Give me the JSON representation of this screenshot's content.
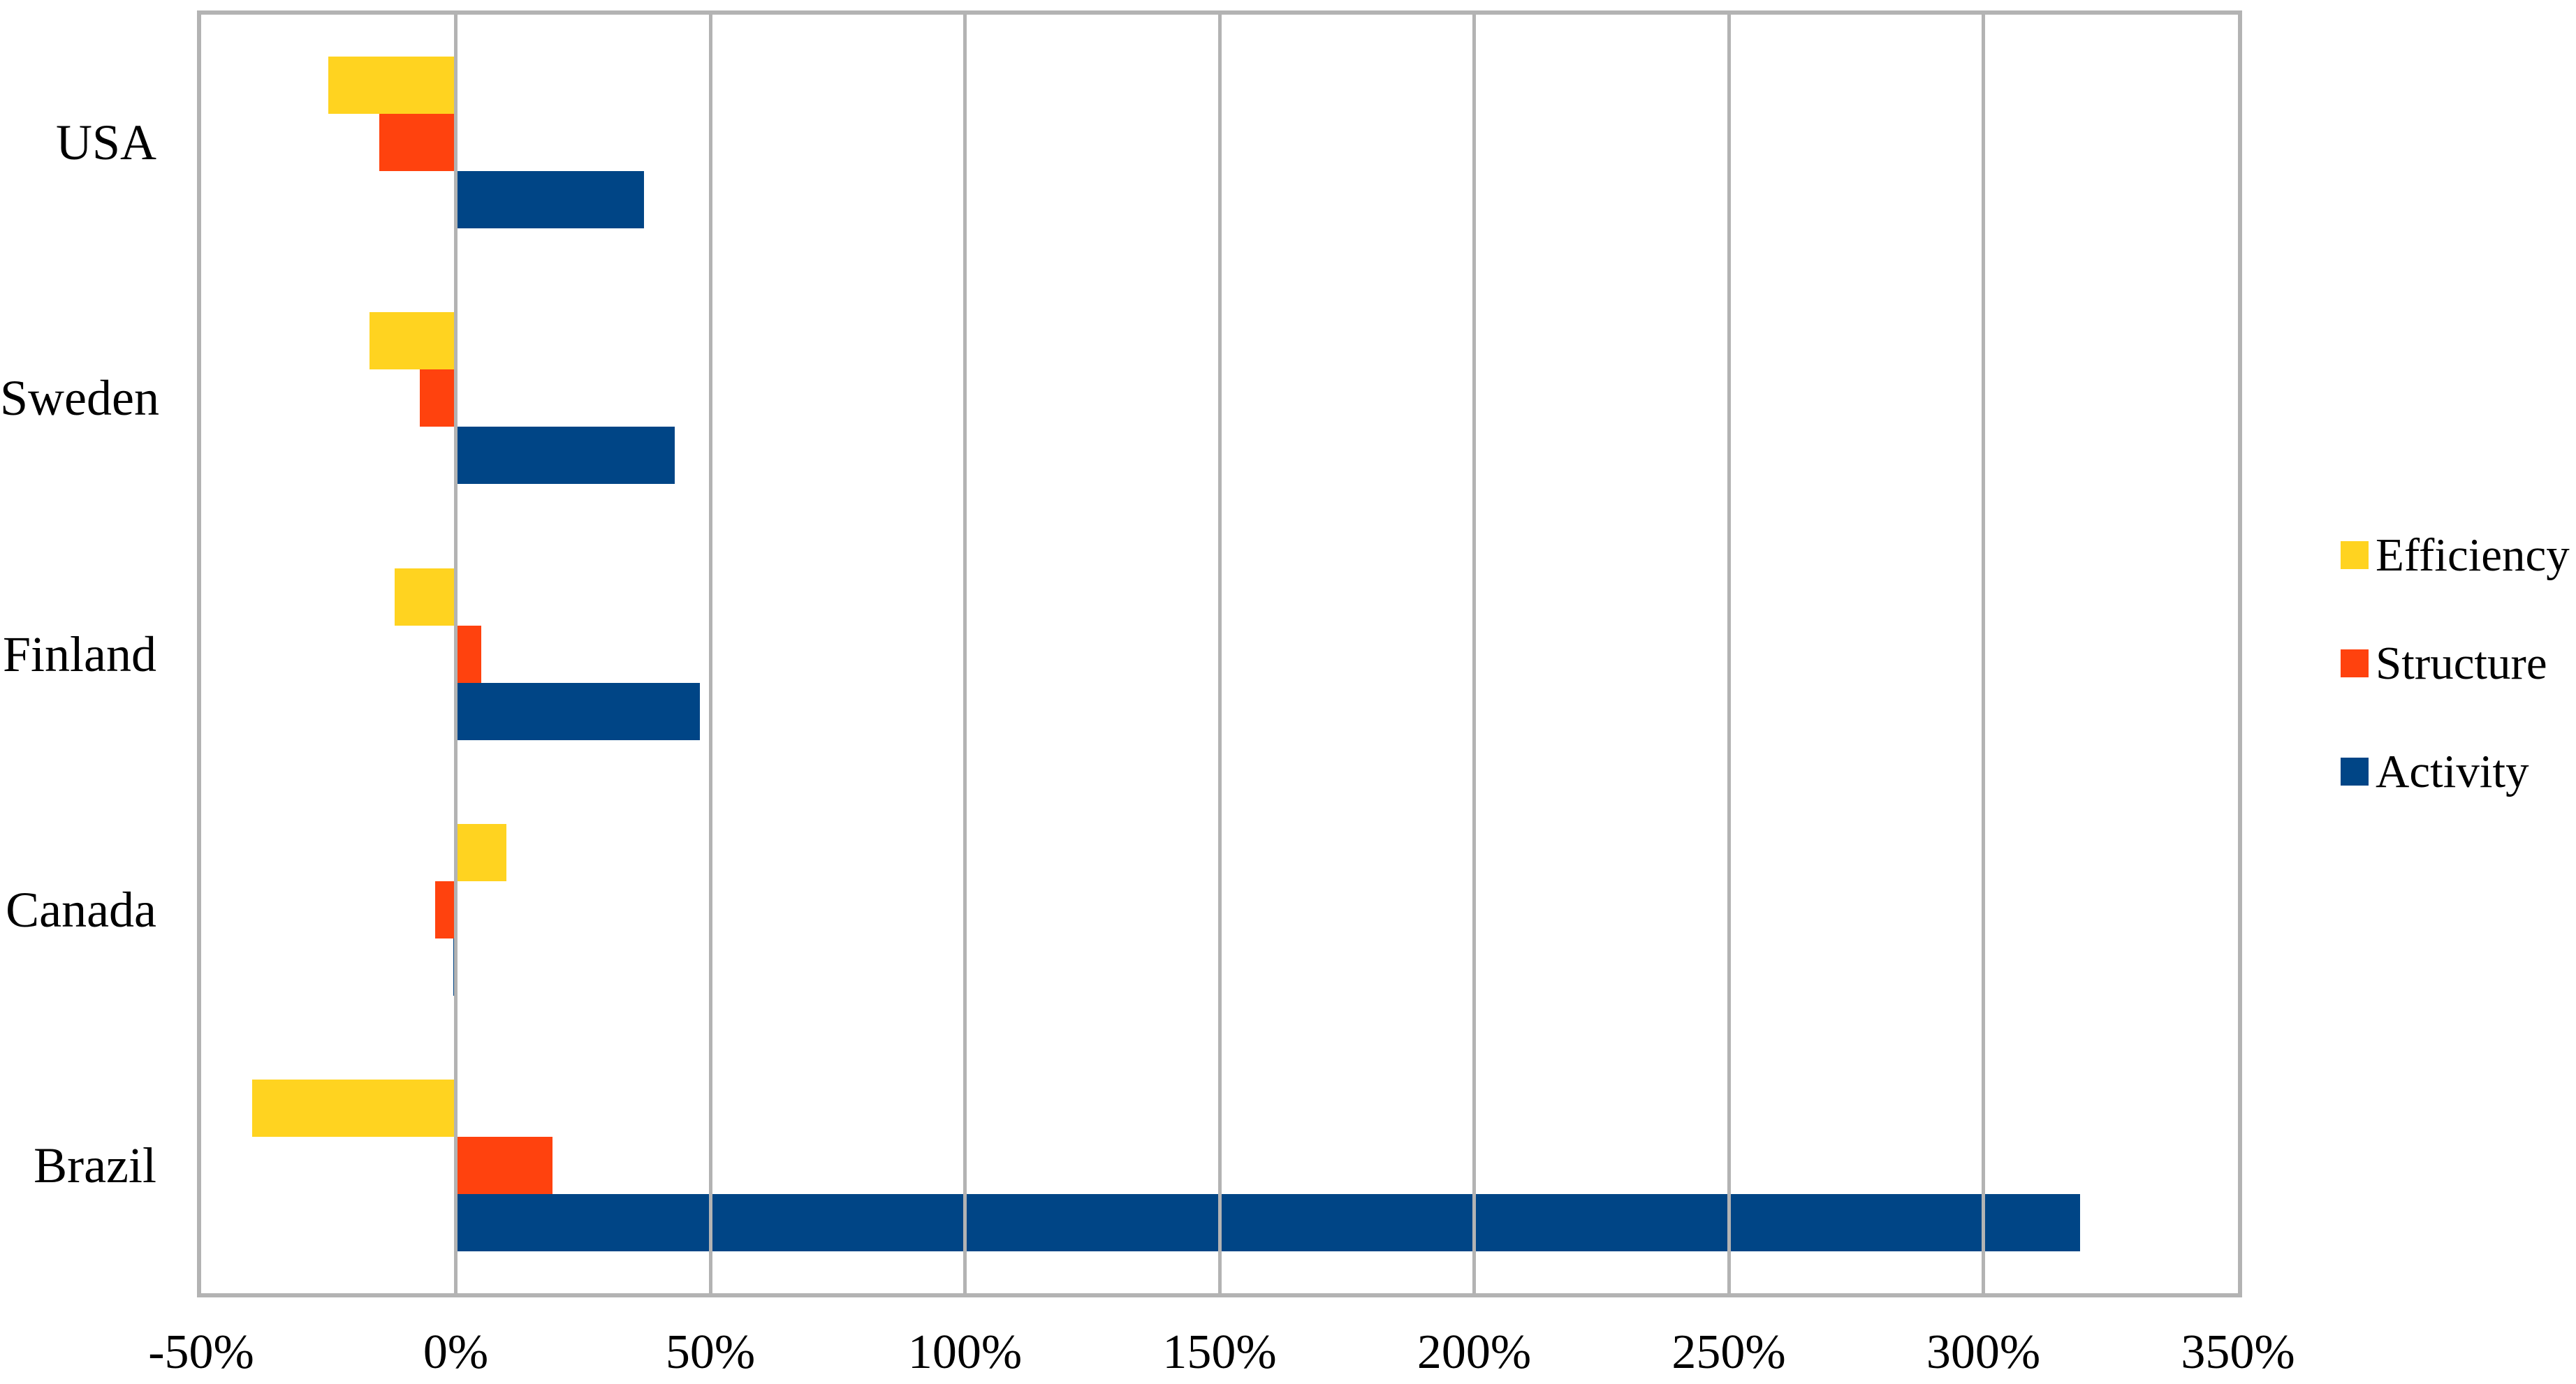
{
  "chart_data": {
    "type": "bar",
    "orientation": "horizontal",
    "title": "",
    "categories": [
      "USA",
      "Sweden",
      "Finland",
      "Canada",
      "Brazil"
    ],
    "series": [
      {
        "name": "Efficiency",
        "color": "#FFD320",
        "values": [
          -25,
          -17,
          -12,
          10,
          -40
        ]
      },
      {
        "name": "Structure",
        "color": "#FF420E",
        "values": [
          -15,
          -7,
          5,
          -4,
          19
        ]
      },
      {
        "name": "Activity",
        "color": "#004586",
        "values": [
          37,
          43,
          48,
          -0.5,
          319
        ]
      }
    ],
    "x_axis": {
      "unit": "%",
      "min": -50,
      "max": 350,
      "step": 50,
      "tick_labels": [
        "-50%",
        "0%",
        "50%",
        "100%",
        "150%",
        "200%",
        "250%",
        "300%",
        "350%"
      ]
    },
    "y_axis": {
      "tick_labels": [
        "USA",
        "Sweden",
        "Finland",
        "Canada",
        "Brazil"
      ]
    },
    "legend": {
      "position": "right",
      "entries": [
        "Efficiency",
        "Structure",
        "Activity"
      ]
    },
    "grid": true,
    "colors": {
      "background": "#FFFFFF",
      "gridline": "#B3B3B3",
      "plot_border": "#B3B3B3"
    }
  }
}
